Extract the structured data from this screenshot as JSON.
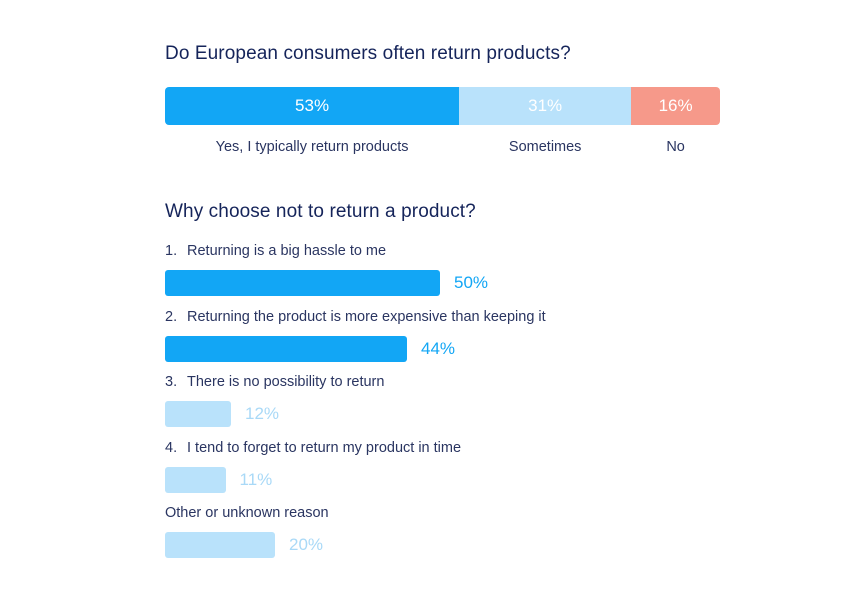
{
  "chart_data": [
    {
      "type": "bar",
      "orientation": "horizontal-stacked",
      "title": "Do European consumers often return products?",
      "categories": [
        "Yes, I typically return products",
        "Sometimes",
        "No"
      ],
      "values": [
        53,
        31,
        16
      ],
      "value_labels": [
        "53%",
        "31%",
        "16%"
      ],
      "colors": [
        "#12a6f5",
        "#b9e2fb",
        "#f6998a"
      ]
    },
    {
      "type": "bar",
      "orientation": "horizontal",
      "title": "Why choose not to return a product?",
      "items": [
        {
          "number": "1.",
          "label": "Returning is a big hassle to me",
          "value": 50,
          "value_label": "50%",
          "color": "#12a6f5",
          "text_color": "#12a6f5"
        },
        {
          "number": "2.",
          "label": "Returning the product is more expensive than keeping it",
          "value": 44,
          "value_label": "44%",
          "color": "#12a6f5",
          "text_color": "#12a6f5"
        },
        {
          "number": "3.",
          "label": "There is no possibility to return",
          "value": 12,
          "value_label": "12%",
          "color": "#b9e2fb",
          "text_color": "#a9d9f7"
        },
        {
          "number": "4.",
          "label": "I tend to forget to return my product in time",
          "value": 11,
          "value_label": "11%",
          "color": "#b9e2fb",
          "text_color": "#a9d9f7"
        },
        {
          "number": "",
          "label": "Other or unknown reason",
          "value": 20,
          "value_label": "20%",
          "color": "#b9e2fb",
          "text_color": "#a9d9f7"
        }
      ]
    }
  ]
}
